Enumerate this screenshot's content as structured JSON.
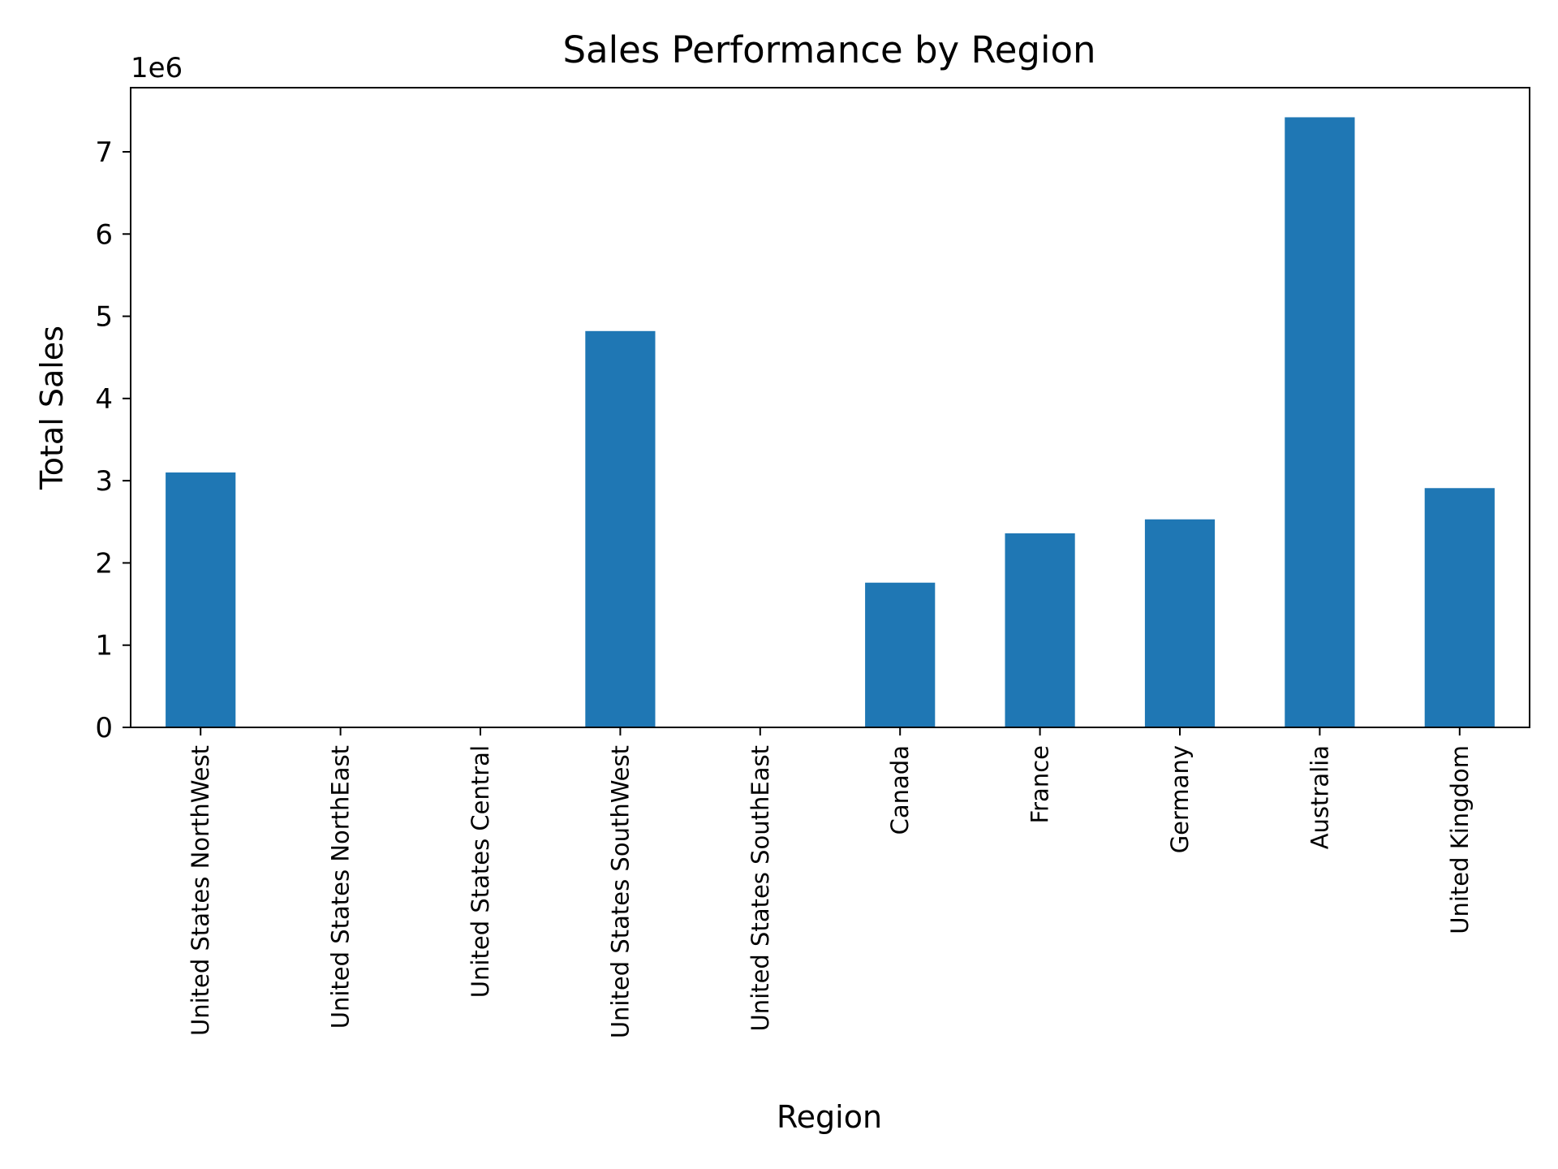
{
  "chart_data": {
    "type": "bar",
    "title": "Sales Performance by Region",
    "xlabel": "Region",
    "ylabel": "Total Sales",
    "y_offset_label": "1e6",
    "categories": [
      "United States NorthWest",
      "United States NorthEast",
      "United States Central",
      "United States SouthWest",
      "United States SouthEast",
      "Canada",
      "France",
      "Germany",
      "Australia",
      "United Kingdom"
    ],
    "values": [
      3100000,
      0,
      0,
      4820000,
      0,
      1760000,
      2360000,
      2530000,
      7420000,
      2910000
    ],
    "ylim": [
      0,
      7780000
    ],
    "y_ticks": [
      0,
      1000000,
      2000000,
      3000000,
      4000000,
      5000000,
      6000000,
      7000000
    ],
    "y_tick_labels": [
      "0",
      "1",
      "2",
      "3",
      "4",
      "5",
      "6",
      "7"
    ],
    "grid": false,
    "legend": false,
    "bar_color": "#1f77b4"
  }
}
